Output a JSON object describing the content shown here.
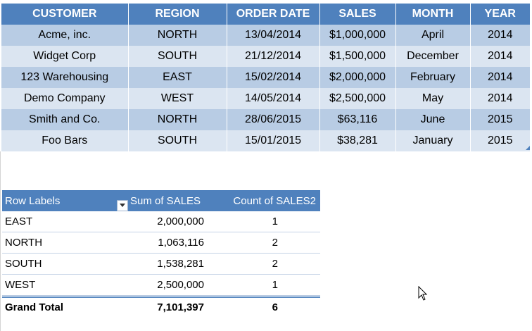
{
  "data_table": {
    "headers": [
      "CUSTOMER",
      "REGION",
      "ORDER DATE",
      "SALES",
      "MONTH",
      "YEAR"
    ],
    "rows": [
      [
        "Acme, inc.",
        "NORTH",
        "13/04/2014",
        "$1,000,000",
        "April",
        "2014"
      ],
      [
        "Widget Corp",
        "SOUTH",
        "21/12/2014",
        "$1,500,000",
        "December",
        "2014"
      ],
      [
        "123 Warehousing",
        "EAST",
        "15/02/2014",
        "$2,000,000",
        "February",
        "2014"
      ],
      [
        "Demo Company",
        "WEST",
        "14/05/2014",
        "$2,500,000",
        "May",
        "2014"
      ],
      [
        "Smith and Co.",
        "NORTH",
        "28/06/2015",
        "$63,116",
        "June",
        "2015"
      ],
      [
        "Foo Bars",
        "SOUTH",
        "15/01/2015",
        "$38,281",
        "January",
        "2015"
      ]
    ]
  },
  "pivot": {
    "headers": {
      "row_labels": "Row Labels",
      "sum": "Sum of SALES",
      "count": "Count of SALES2"
    },
    "rows": [
      {
        "label": "EAST",
        "sum": "2,000,000",
        "count": "1"
      },
      {
        "label": "NORTH",
        "sum": "1,063,116",
        "count": "2"
      },
      {
        "label": "SOUTH",
        "sum": "1,538,281",
        "count": "2"
      },
      {
        "label": "WEST",
        "sum": "2,500,000",
        "count": "1"
      }
    ],
    "total": {
      "label": "Grand Total",
      "sum": "7,101,397",
      "count": "6"
    }
  },
  "icons": {
    "filter": "filter-dropdown-icon",
    "cursor": "mouse-pointer-icon"
  },
  "colors": {
    "header_blue": "#4f81bd",
    "band_dark": "#b8cce4",
    "band_light": "#dbe5f1"
  }
}
